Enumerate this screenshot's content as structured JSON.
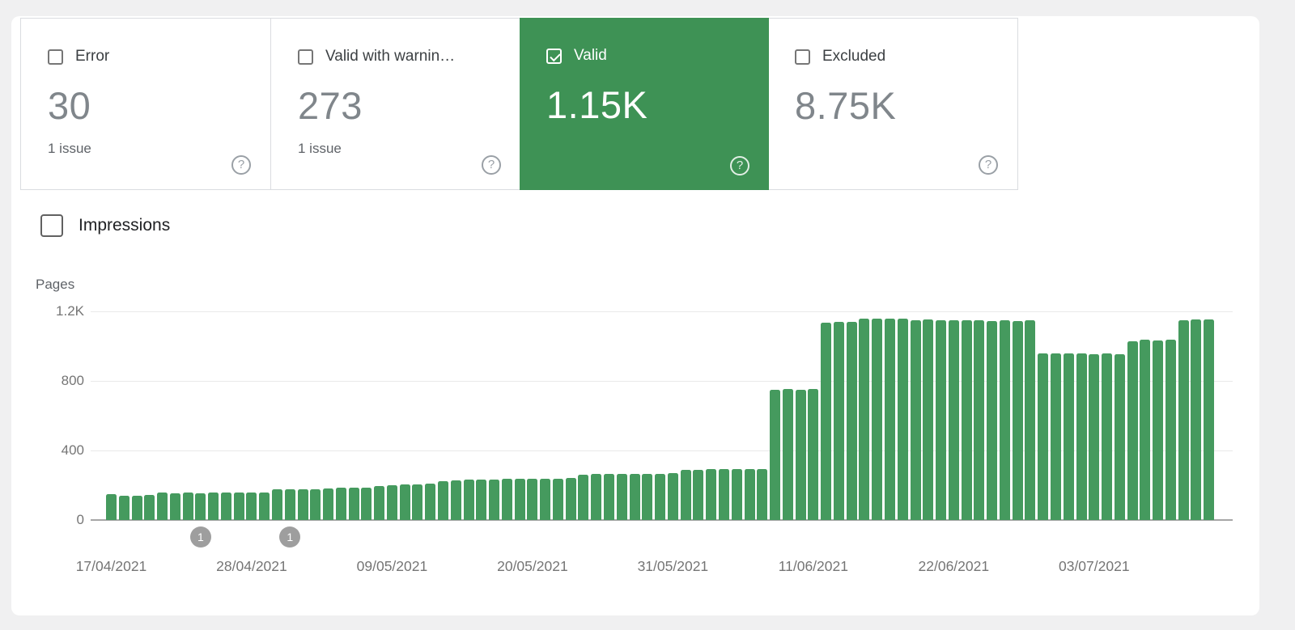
{
  "colors": {
    "selected_card_green": "#3e9255",
    "bar_green": "#459a5e",
    "annotation_gray": "#9e9e9e",
    "page_background": "#f0f0f1",
    "card_border": "#dadce0"
  },
  "icons": {
    "help": "?"
  },
  "cards": [
    {
      "label": "Error",
      "value": "30",
      "sub": "1 issue",
      "checked": false,
      "selected": false
    },
    {
      "label": "Valid with warnin…",
      "value": "273",
      "sub": "1 issue",
      "checked": false,
      "selected": false
    },
    {
      "label": "Valid",
      "value": "1.15K",
      "sub": "",
      "checked": true,
      "selected": true
    },
    {
      "label": "Excluded",
      "value": "8.75K",
      "sub": "",
      "checked": false,
      "selected": false
    }
  ],
  "impressions": {
    "label": "Impressions",
    "checked": false
  },
  "chart_data": {
    "type": "bar",
    "title": "",
    "ylabel": "Pages",
    "xlabel": "",
    "ylim": [
      0,
      1200
    ],
    "grid": true,
    "y_ticks": [
      {
        "label": "1.2K",
        "value": 1200
      },
      {
        "label": "800",
        "value": 800
      },
      {
        "label": "400",
        "value": 400
      },
      {
        "label": "0",
        "value": 0
      }
    ],
    "x": [
      "17/04/2021",
      "18/04/2021",
      "19/04/2021",
      "20/04/2021",
      "21/04/2021",
      "22/04/2021",
      "23/04/2021",
      "24/04/2021",
      "25/04/2021",
      "26/04/2021",
      "27/04/2021",
      "28/04/2021",
      "29/04/2021",
      "30/04/2021",
      "01/05/2021",
      "02/05/2021",
      "03/05/2021",
      "04/05/2021",
      "05/05/2021",
      "06/05/2021",
      "07/05/2021",
      "08/05/2021",
      "09/05/2021",
      "10/05/2021",
      "11/05/2021",
      "12/05/2021",
      "13/05/2021",
      "14/05/2021",
      "15/05/2021",
      "16/05/2021",
      "17/05/2021",
      "18/05/2021",
      "19/05/2021",
      "20/05/2021",
      "21/05/2021",
      "22/05/2021",
      "23/05/2021",
      "24/05/2021",
      "25/05/2021",
      "26/05/2021",
      "27/05/2021",
      "28/05/2021",
      "29/05/2021",
      "30/05/2021",
      "31/05/2021",
      "01/06/2021",
      "02/06/2021",
      "03/06/2021",
      "04/06/2021",
      "05/06/2021",
      "06/06/2021",
      "07/06/2021",
      "08/06/2021",
      "09/06/2021",
      "10/06/2021",
      "11/06/2021",
      "12/06/2021",
      "13/06/2021",
      "14/06/2021",
      "15/06/2021",
      "16/06/2021",
      "17/06/2021",
      "18/06/2021",
      "19/06/2021",
      "20/06/2021",
      "21/06/2021",
      "22/06/2021",
      "23/06/2021",
      "24/06/2021",
      "25/06/2021",
      "26/06/2021",
      "27/06/2021",
      "28/06/2021",
      "29/06/2021",
      "30/06/2021",
      "01/07/2021",
      "02/07/2021",
      "03/07/2021",
      "04/07/2021",
      "05/07/2021",
      "06/07/2021",
      "07/07/2021",
      "08/07/2021",
      "09/07/2021",
      "10/07/2021",
      "11/07/2021",
      "12/07/2021"
    ],
    "values": [
      150,
      140,
      140,
      142,
      156,
      155,
      156,
      155,
      157,
      158,
      158,
      160,
      160,
      175,
      177,
      178,
      178,
      180,
      185,
      186,
      188,
      195,
      200,
      203,
      206,
      210,
      222,
      228,
      232,
      234,
      234,
      236,
      235,
      237,
      236,
      238,
      240,
      262,
      265,
      264,
      266,
      265,
      267,
      266,
      268,
      288,
      290,
      292,
      291,
      293,
      292,
      295,
      748,
      752,
      750,
      753,
      1135,
      1138,
      1140,
      1158,
      1160,
      1158,
      1160,
      1150,
      1152,
      1148,
      1150,
      1148,
      1150,
      1145,
      1148,
      1145,
      1148,
      958,
      960,
      958,
      960,
      955,
      958,
      955,
      1030,
      1035,
      1032,
      1035,
      1150,
      1155,
      1152
    ],
    "x_tick_indices": [
      0,
      11,
      22,
      33,
      44,
      55,
      66,
      77
    ],
    "x_tick_labels": [
      "17/04/2021",
      "28/04/2021",
      "09/05/2021",
      "20/05/2021",
      "31/05/2021",
      "11/06/2021",
      "22/06/2021",
      "03/07/2021"
    ],
    "annotations": [
      {
        "bar_index": 7,
        "label": "1"
      },
      {
        "bar_index": 14,
        "label": "1"
      }
    ],
    "legend_position": "none"
  }
}
